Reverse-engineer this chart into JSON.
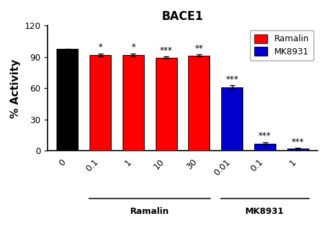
{
  "title": "BACE1",
  "ylabel": "% Activity",
  "bar_labels": [
    "0",
    "0.1",
    "1",
    "10",
    "30",
    "0.01",
    "0.1",
    "1"
  ],
  "bar_values": [
    97.5,
    92.0,
    92.0,
    89.5,
    91.5,
    61.0,
    7.0,
    2.0
  ],
  "bar_errors": [
    0.5,
    1.5,
    1.5,
    1.2,
    1.0,
    2.0,
    1.5,
    0.8
  ],
  "bar_colors": [
    "#000000",
    "#ff0000",
    "#ff0000",
    "#ff0000",
    "#ff0000",
    "#0000cc",
    "#0000cc",
    "#0000cc"
  ],
  "significance": [
    "",
    "*",
    "*",
    "***",
    "**",
    "***",
    "***",
    "***"
  ],
  "ylim": [
    0,
    120
  ],
  "yticks": [
    0,
    30,
    60,
    90,
    120
  ],
  "legend_labels": [
    "Ramalin",
    "MK8931"
  ],
  "legend_colors": [
    "#ff0000",
    "#0000cc"
  ],
  "background_color": "#ffffff",
  "title_fontsize": 12,
  "axis_fontsize": 11,
  "tick_fontsize": 9,
  "sig_fontsize": 9,
  "group1_label": "Ramalin",
  "group2_label": "MK8931",
  "group1_bar_indices": [
    1,
    2,
    3,
    4
  ],
  "group2_bar_indices": [
    5,
    6,
    7
  ]
}
